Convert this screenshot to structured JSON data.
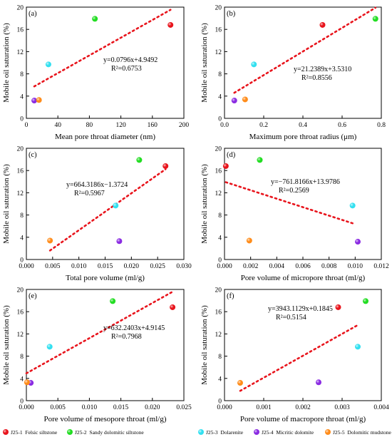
{
  "chart_data": [
    {
      "type": "scatter",
      "panel_label": "(a)",
      "xlabel": "Mean pore throat diameter (nm)",
      "ylabel": "Mobile oil saturation (%)",
      "xlim": [
        0,
        200
      ],
      "ylim": [
        0,
        20
      ],
      "xticks": [
        "0",
        "40",
        "80",
        "120",
        "160",
        "200"
      ],
      "yticks": [
        "0",
        "4",
        "8",
        "12",
        "16",
        "20"
      ],
      "points": [
        {
          "sample": "J25-1",
          "x": 183,
          "y": 16.8
        },
        {
          "sample": "J25-2",
          "x": 87,
          "y": 17.9
        },
        {
          "sample": "J25-3",
          "x": 28,
          "y": 9.7
        },
        {
          "sample": "J25-4",
          "x": 10,
          "y": 3.2
        },
        {
          "sample": "J25-5",
          "x": 16,
          "y": 3.3
        }
      ],
      "fit": {
        "slope": 0.0796,
        "intercept": 4.9492,
        "x_range": [
          10,
          183
        ]
      },
      "equation": "y=0.0796x+4.9492",
      "r2": "R²=0.6753"
    },
    {
      "type": "scatter",
      "panel_label": "(b)",
      "xlabel": "Maximum pore throat radius (μm)",
      "ylabel": "Mobile oil saturation (%)",
      "xlim": [
        0,
        0.8
      ],
      "ylim": [
        0,
        20
      ],
      "xticks": [
        "0.0",
        "0.2",
        "0.4",
        "0.6",
        "0.8"
      ],
      "yticks": [
        "0",
        "4",
        "8",
        "12",
        "16",
        "20"
      ],
      "points": [
        {
          "sample": "J25-1",
          "x": 0.5,
          "y": 16.8
        },
        {
          "sample": "J25-2",
          "x": 0.77,
          "y": 17.9
        },
        {
          "sample": "J25-3",
          "x": 0.15,
          "y": 9.7
        },
        {
          "sample": "J25-4",
          "x": 0.05,
          "y": 3.2
        },
        {
          "sample": "J25-5",
          "x": 0.105,
          "y": 3.4
        }
      ],
      "fit": {
        "slope": 21.2389,
        "intercept": 3.531,
        "x_range": [
          0.05,
          0.77
        ]
      },
      "equation": "y=21.2389x+3.5310",
      "r2": "R²=0.8556"
    },
    {
      "type": "scatter",
      "panel_label": "(c)",
      "xlabel": "Total pore volume (ml/g)",
      "ylabel": "Mobile oil saturation (%)",
      "xlim": [
        0,
        0.03
      ],
      "ylim": [
        0,
        20
      ],
      "xticks": [
        "0.000",
        "0.005",
        "0.010",
        "0.015",
        "0.020",
        "0.025",
        "0.030"
      ],
      "yticks": [
        "0",
        "4",
        "8",
        "12",
        "16",
        "20"
      ],
      "points": [
        {
          "sample": "J25-1",
          "x": 0.0265,
          "y": 16.8
        },
        {
          "sample": "J25-2",
          "x": 0.0215,
          "y": 17.9
        },
        {
          "sample": "J25-3",
          "x": 0.017,
          "y": 9.7
        },
        {
          "sample": "J25-4",
          "x": 0.0177,
          "y": 3.3
        },
        {
          "sample": "J25-5",
          "x": 0.0045,
          "y": 3.4
        }
      ],
      "fit": {
        "slope": 664.3186,
        "intercept": -1.3724,
        "x_range": [
          0.0045,
          0.0265
        ]
      },
      "equation": "y=664.3186x−1.3724",
      "r2": "R²=0.5967"
    },
    {
      "type": "scatter",
      "panel_label": "(d)",
      "xlabel": "Pore volume of micropore throat (ml/g)",
      "ylabel": "Mobile oil saturation (%)",
      "xlim": [
        0,
        0.012
      ],
      "ylim": [
        0,
        20
      ],
      "xticks": [
        "0.000",
        "0.002",
        "0.004",
        "0.006",
        "0.008",
        "0.010",
        "0.012"
      ],
      "yticks": [
        "0",
        "4",
        "8",
        "12",
        "16",
        "20"
      ],
      "points": [
        {
          "sample": "J25-1",
          "x": 0.0001,
          "y": 16.8
        },
        {
          "sample": "J25-2",
          "x": 0.0027,
          "y": 17.9
        },
        {
          "sample": "J25-3",
          "x": 0.0098,
          "y": 9.7
        },
        {
          "sample": "J25-4",
          "x": 0.0102,
          "y": 3.2
        },
        {
          "sample": "J25-5",
          "x": 0.0019,
          "y": 3.4
        }
      ],
      "fit": {
        "slope": -761.8166,
        "intercept": 13.9786,
        "x_range": [
          0.0001,
          0.0098
        ]
      },
      "equation": "y=−761.8166x+13.9786",
      "r2": "R²=0.2569"
    },
    {
      "type": "scatter",
      "panel_label": "(e)",
      "xlabel": "Pore volume of mesopore throat (ml/g)",
      "ylabel": "Mobile oil saturation (%)",
      "xlim": [
        0,
        0.025
      ],
      "ylim": [
        0,
        20
      ],
      "xticks": [
        "0.000",
        "0.005",
        "0.010",
        "0.015",
        "0.020",
        "0.025"
      ],
      "yticks": [
        "0",
        "4",
        "8",
        "12",
        "16",
        "20"
      ],
      "points": [
        {
          "sample": "J25-1",
          "x": 0.0232,
          "y": 16.8
        },
        {
          "sample": "J25-2",
          "x": 0.0137,
          "y": 17.9
        },
        {
          "sample": "J25-3",
          "x": 0.0037,
          "y": 9.7
        },
        {
          "sample": "J25-4",
          "x": 0.0007,
          "y": 3.2
        },
        {
          "sample": "J25-5",
          "x": 0.0001,
          "y": 3.3
        }
      ],
      "fit": {
        "slope": 632.2403,
        "intercept": 4.9145,
        "x_range": [
          0,
          0.0232
        ]
      },
      "equation": "y=632.2403x+4.9145",
      "r2": "R²=0.7968"
    },
    {
      "type": "scatter",
      "panel_label": "(f)",
      "xlabel": "Pore volume of macropore throat (ml/g)",
      "ylabel": "Mobile oil saturation (%)",
      "xlim": [
        0,
        0.004
      ],
      "ylim": [
        0,
        20
      ],
      "xticks": [
        "0.000",
        "0.001",
        "0.002",
        "0.003",
        "0.004"
      ],
      "yticks": [
        "0",
        "4",
        "8",
        "12",
        "16",
        "20"
      ],
      "points": [
        {
          "sample": "J25-1",
          "x": 0.0029,
          "y": 16.8
        },
        {
          "sample": "J25-2",
          "x": 0.0036,
          "y": 17.9
        },
        {
          "sample": "J25-3",
          "x": 0.0034,
          "y": 9.7
        },
        {
          "sample": "J25-4",
          "x": 0.0024,
          "y": 3.3
        },
        {
          "sample": "J25-5",
          "x": 0.0004,
          "y": 3.2
        }
      ],
      "fit": {
        "slope": 3943.1129,
        "intercept": 0.1845,
        "x_range": [
          0.0004,
          0.0034
        ]
      },
      "equation": "y=3943.1129x+0.1845",
      "r2": "R²=0.5154"
    }
  ],
  "legend": {
    "placement": "bottom",
    "items": [
      {
        "sample": "J25-1",
        "label": "J25-1  Felsic siltstone",
        "color": "#e8141c"
      },
      {
        "sample": "J25-2",
        "label": "J25-2  Sandy dolomitic siltstone",
        "color": "#22dd22"
      },
      {
        "sample": "J25-3",
        "label": "J25-3  Dolarenite",
        "color": "#33e0f0"
      },
      {
        "sample": "J25-4",
        "label": "J25-4  Micritic dolomite",
        "color": "#8a2be2"
      },
      {
        "sample": "J25-5",
        "label": "J25-5  Dolomitic mudstone",
        "color": "#ff8c1a"
      }
    ]
  },
  "fit_line_color": "#e8141c"
}
